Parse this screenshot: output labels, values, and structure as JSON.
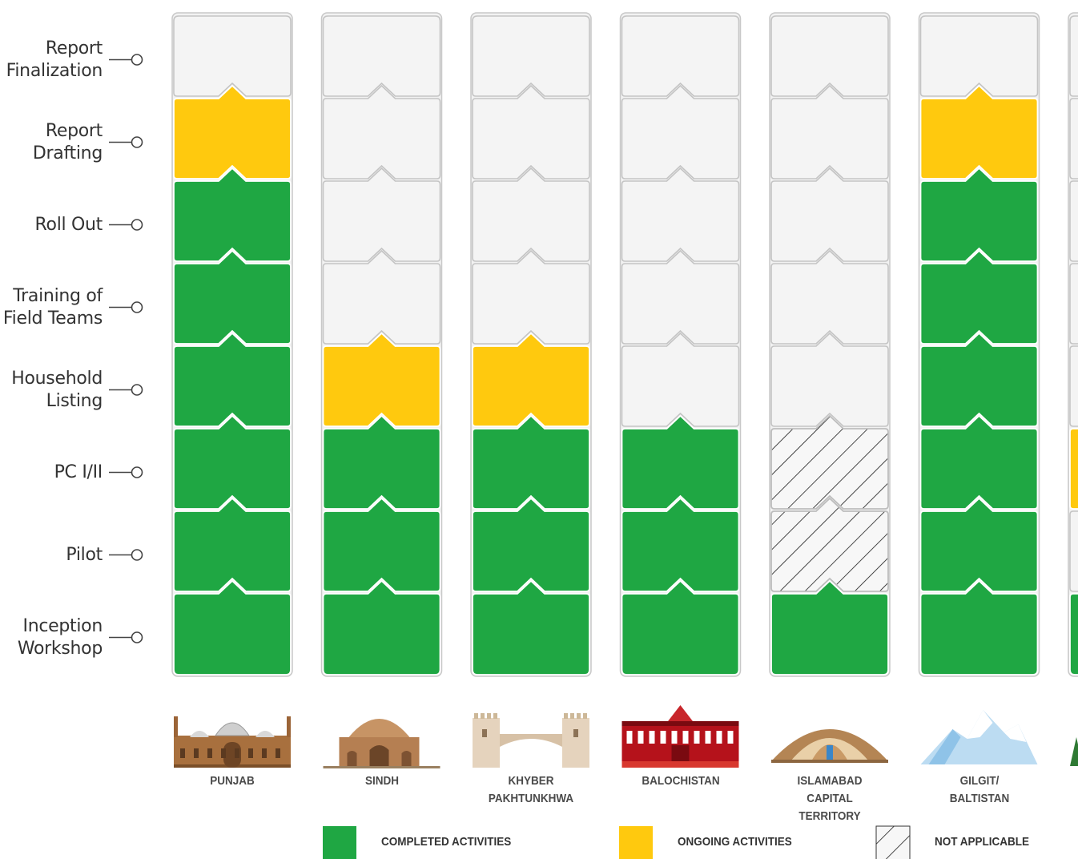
{
  "chart_data": {
    "type": "table",
    "stages": [
      "Inception\nWorkshop",
      "Pilot",
      "PC I/II",
      "Household\nListing",
      "Training of\nField Teams",
      "Roll Out",
      "Report\nDrafting",
      "Report\nFinalization"
    ],
    "regions": [
      {
        "name": "PUNJAB",
        "statuses": [
          "completed",
          "completed",
          "completed",
          "completed",
          "completed",
          "completed",
          "ongoing",
          "pending"
        ]
      },
      {
        "name": "SINDH",
        "statuses": [
          "completed",
          "completed",
          "completed",
          "ongoing",
          "pending",
          "pending",
          "pending",
          "pending"
        ]
      },
      {
        "name": "KHYBER\nPAKHTUNKHWA",
        "statuses": [
          "completed",
          "completed",
          "completed",
          "ongoing",
          "pending",
          "pending",
          "pending",
          "pending"
        ]
      },
      {
        "name": "BALOCHISTAN",
        "statuses": [
          "completed",
          "completed",
          "completed",
          "pending",
          "pending",
          "pending",
          "pending",
          "pending"
        ]
      },
      {
        "name": "ISLAMABAD CAPITAL\nTERRITORY",
        "statuses": [
          "completed",
          "not_applicable",
          "not_applicable",
          "pending",
          "pending",
          "pending",
          "pending",
          "pending"
        ]
      },
      {
        "name": "GILGIT/\nBALTISTAN",
        "statuses": [
          "completed",
          "completed",
          "completed",
          "completed",
          "completed",
          "completed",
          "ongoing",
          "pending"
        ]
      },
      {
        "name": "",
        "statuses": [
          "completed",
          "pending",
          "ongoing",
          "pending",
          "pending",
          "pending",
          "pending",
          "pending"
        ]
      }
    ],
    "legend": [
      {
        "key": "completed",
        "label": "COMPLETED ACTIVITIES",
        "color": "#1fa743"
      },
      {
        "key": "ongoing",
        "label": "ONGOING ACTIVITIES",
        "color": "#ffc90e"
      },
      {
        "key": "not_applicable",
        "label": "NOT APPLICABLE",
        "pattern": "hatch"
      }
    ],
    "colors": {
      "completed": "#1fa743",
      "ongoing": "#ffc90e",
      "pending": "#f4f4f4",
      "border": "#c8c8c8"
    },
    "icons": [
      "mosque-icon",
      "mausoleum-icon",
      "khyber-gate-icon",
      "heritage-building-icon",
      "monument-icon",
      "mountain-icon",
      "tree-icon"
    ]
  }
}
